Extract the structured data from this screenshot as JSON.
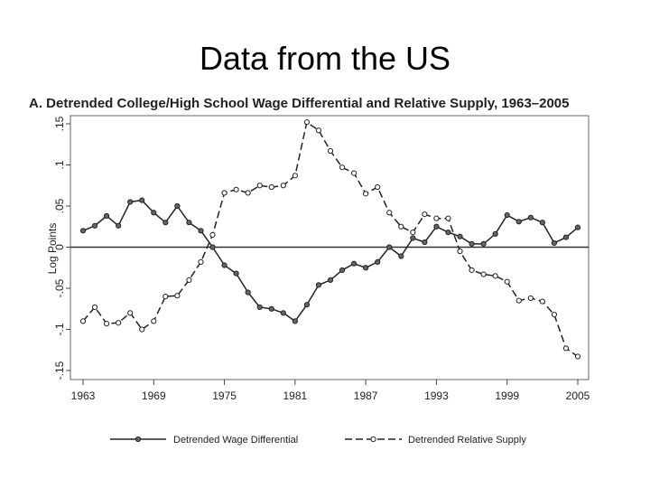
{
  "slide": {
    "title": "Data from the US"
  },
  "chart_data": {
    "type": "line",
    "title": "A. Detrended College/High School Wage Differential and Relative Supply, 1963–2005",
    "xlabel": "",
    "ylabel": "Log Points",
    "xlim": [
      1963,
      2005
    ],
    "ylim": [
      -0.15,
      0.15
    ],
    "xticks": [
      1963,
      1969,
      1975,
      1981,
      1987,
      1993,
      1999,
      2005
    ],
    "yticks": [
      -0.15,
      -0.1,
      -0.05,
      0,
      0.05,
      0.1,
      0.15
    ],
    "ytick_labels": [
      "-.15",
      "-.1",
      "-.05",
      "0",
      ".05",
      ".1",
      ".15"
    ],
    "reference_line": 0,
    "grid": false,
    "legend": "bottom",
    "x": [
      1963,
      1964,
      1965,
      1966,
      1967,
      1968,
      1969,
      1970,
      1971,
      1972,
      1973,
      1974,
      1975,
      1976,
      1977,
      1978,
      1979,
      1980,
      1981,
      1982,
      1983,
      1984,
      1985,
      1986,
      1987,
      1988,
      1989,
      1990,
      1991,
      1992,
      1993,
      1994,
      1995,
      1996,
      1997,
      1998,
      1999,
      2000,
      2001,
      2002,
      2003,
      2004,
      2005
    ],
    "series": [
      {
        "name": "Detrended Wage Differential",
        "style": "solid",
        "color": "#222222",
        "values": [
          0.02,
          0.026,
          0.038,
          0.026,
          0.055,
          0.057,
          0.042,
          0.03,
          0.05,
          0.03,
          0.02,
          0.0,
          -0.022,
          -0.032,
          -0.055,
          -0.073,
          -0.075,
          -0.08,
          -0.09,
          -0.07,
          -0.046,
          -0.04,
          -0.028,
          -0.02,
          -0.025,
          -0.018,
          0.0,
          -0.011,
          0.011,
          0.006,
          0.025,
          0.018,
          0.013,
          0.004,
          0.004,
          0.016,
          0.039,
          0.031,
          0.036,
          0.03,
          0.005,
          0.012,
          0.024
        ]
      },
      {
        "name": "Detrended Relative Supply",
        "style": "dashed",
        "color": "#222222",
        "values": [
          -0.09,
          -0.073,
          -0.093,
          -0.092,
          -0.08,
          -0.1,
          -0.09,
          -0.06,
          -0.059,
          -0.04,
          -0.018,
          0.015,
          0.066,
          0.07,
          0.066,
          0.075,
          0.073,
          0.075,
          0.087,
          0.152,
          0.142,
          0.117,
          0.097,
          0.09,
          0.065,
          0.073,
          0.042,
          0.025,
          0.018,
          0.04,
          0.035,
          0.035,
          -0.005,
          -0.028,
          -0.033,
          -0.035,
          -0.042,
          -0.065,
          -0.062,
          -0.066,
          -0.082,
          -0.123,
          -0.133
        ]
      }
    ]
  }
}
